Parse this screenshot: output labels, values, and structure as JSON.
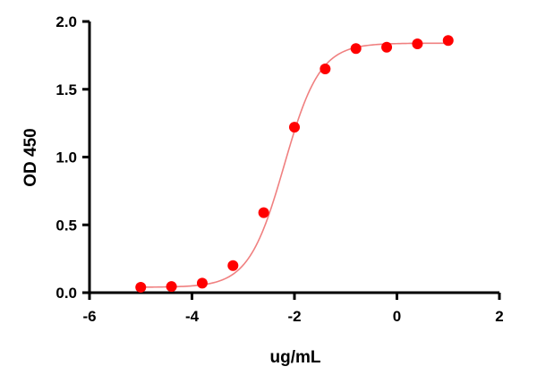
{
  "chart_data": {
    "type": "scatter",
    "title": "",
    "xlabel": "ug/mL",
    "ylabel": "OD 450",
    "xlim": [
      -6,
      2
    ],
    "ylim": [
      0,
      2.0
    ],
    "x_ticks": [
      -6,
      -4,
      -2,
      0,
      2
    ],
    "y_ticks": [
      0.0,
      0.5,
      1.0,
      1.5,
      2.0
    ],
    "x_tick_labels": [
      "-6",
      "-4",
      "-2",
      "0",
      "2"
    ],
    "y_tick_labels": [
      "0.0",
      "0.5",
      "1.0",
      "1.5",
      "2.0"
    ],
    "grid": false,
    "legend": "none",
    "series": [
      {
        "x": [
          -5.0,
          -4.4,
          -3.8,
          -3.2,
          -2.6,
          -2.0,
          -1.4,
          -0.8,
          -0.2,
          0.4,
          1.0
        ],
        "y": [
          0.04,
          0.045,
          0.07,
          0.2,
          0.59,
          1.22,
          1.65,
          1.8,
          1.81,
          1.835,
          1.86
        ],
        "color": "#ff0000",
        "marker": "circle"
      }
    ],
    "fit_curve": {
      "model": "4PL",
      "bottom": 0.04,
      "top": 1.84,
      "ec50_log": -2.2,
      "hill": 1.25,
      "color": "#f08080"
    }
  }
}
